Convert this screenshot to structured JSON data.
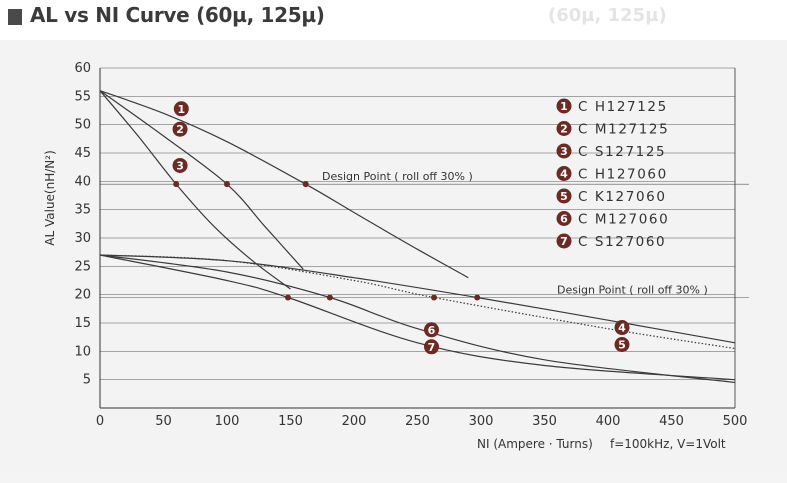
{
  "header": {
    "title": "AL vs NI Curve (60µ, 125µ)",
    "ghost_left": "■ AL vs NI Curve",
    "ghost_right": "(60µ, 125µ)"
  },
  "colors": {
    "curve": "#3a3a3a",
    "marker": "#6b2a24",
    "grid": "#555555",
    "panel": "#f3f3f3"
  },
  "chart_data": {
    "type": "line",
    "title": "",
    "xlabel": "NI (Ampere · Turns)",
    "ylabel": "AL Value(nH/N²)",
    "footnote": "f=100kHz, V=1Volt",
    "xlim": [
      0,
      500
    ],
    "ylim": [
      0,
      60
    ],
    "xticks": [
      0,
      50,
      100,
      150,
      200,
      250,
      300,
      350,
      400,
      450,
      500
    ],
    "yticks": [
      5,
      10,
      15,
      20,
      25,
      30,
      35,
      40,
      45,
      50,
      55,
      60
    ],
    "grid": "horizontal",
    "legend_position": "top-right",
    "design_points": [
      {
        "label": "Design Point ( roll off 30% )",
        "y": 39.5
      },
      {
        "label": "Design Point ( roll off 30% )",
        "y": 19.5
      }
    ],
    "series": [
      {
        "id": "1",
        "name": "C H127125",
        "x": [
          0,
          50,
          100,
          162,
          200,
          250,
          290
        ],
        "y": [
          56,
          52,
          47,
          39.5,
          34.5,
          28,
          23
        ]
      },
      {
        "id": "2",
        "name": "C M127125",
        "x": [
          0,
          50,
          100,
          130,
          160
        ],
        "y": [
          56,
          48,
          39.5,
          32,
          24.5
        ]
      },
      {
        "id": "3",
        "name": "C S127125",
        "x": [
          0,
          30,
          60,
          90,
          120,
          150
        ],
        "y": [
          56,
          48,
          39.5,
          32,
          26,
          21
        ]
      },
      {
        "id": "4",
        "name": "C H127060",
        "x": [
          0,
          100,
          200,
          297,
          400,
          500
        ],
        "y": [
          27,
          26,
          23,
          19.5,
          15.5,
          11.5
        ]
      },
      {
        "id": "5",
        "name": "C K127060",
        "x": [
          0,
          100,
          200,
          263,
          400,
          500
        ],
        "y": [
          27,
          26,
          22.5,
          19.5,
          14,
          10.5
        ]
      },
      {
        "id": "6",
        "name": "C M127060",
        "x": [
          0,
          100,
          181,
          250,
          350,
          500
        ],
        "y": [
          27,
          24,
          19.5,
          14,
          8.5,
          4.5
        ]
      },
      {
        "id": "7",
        "name": "C S127060",
        "x": [
          0,
          100,
          148,
          250,
          350,
          500
        ],
        "y": [
          27,
          22.5,
          19.5,
          11.5,
          7.5,
          5
        ]
      }
    ],
    "series_label_positions": [
      {
        "id": "1",
        "x": 53,
        "y": 52.8
      },
      {
        "id": "2",
        "x": 52,
        "y": 49.2
      },
      {
        "id": "3",
        "x": 52,
        "y": 42.8
      },
      {
        "id": "4",
        "x": 400,
        "y": 14.2
      },
      {
        "id": "5",
        "x": 400,
        "y": 11.2
      },
      {
        "id": "6",
        "x": 250,
        "y": 13.8
      },
      {
        "id": "7",
        "x": 250,
        "y": 10.8
      }
    ]
  }
}
